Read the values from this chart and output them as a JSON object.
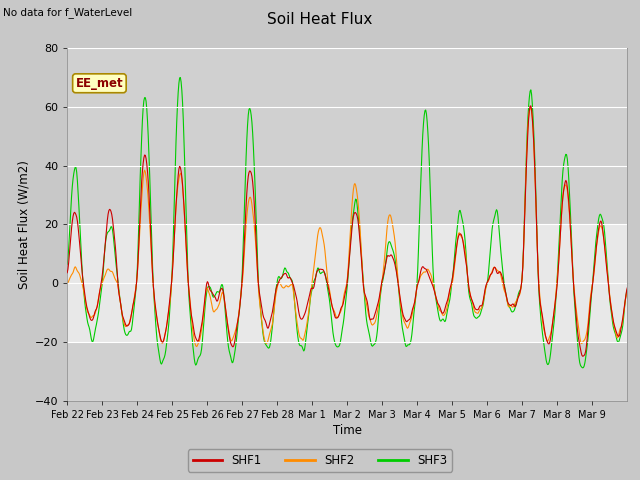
{
  "title": "Soil Heat Flux",
  "ylabel": "Soil Heat Flux (W/m2)",
  "xlabel": "Time",
  "top_left_note": "No data for f_WaterLevel",
  "station_label": "EE_met",
  "ylim": [
    -40,
    80
  ],
  "yticks": [
    -40,
    -20,
    0,
    20,
    40,
    60,
    80
  ],
  "shf1_color": "#cc0000",
  "shf2_color": "#ff8c00",
  "shf3_color": "#00cc00",
  "x_tick_labels": [
    "Feb 22",
    "Feb 23",
    "Feb 24",
    "Feb 25",
    "Feb 26",
    "Feb 27",
    "Feb 28",
    "Mar 1",
    "Mar 2",
    "Mar 3",
    "Mar 4",
    "Mar 5",
    "Mar 6",
    "Mar 7",
    "Mar 8",
    "Mar 9"
  ],
  "n_days": 16,
  "points_per_day": 48,
  "fig_bg": "#c8c8c8",
  "plot_bg": "#e8e8e8",
  "band_bg": "#d0d0d0"
}
